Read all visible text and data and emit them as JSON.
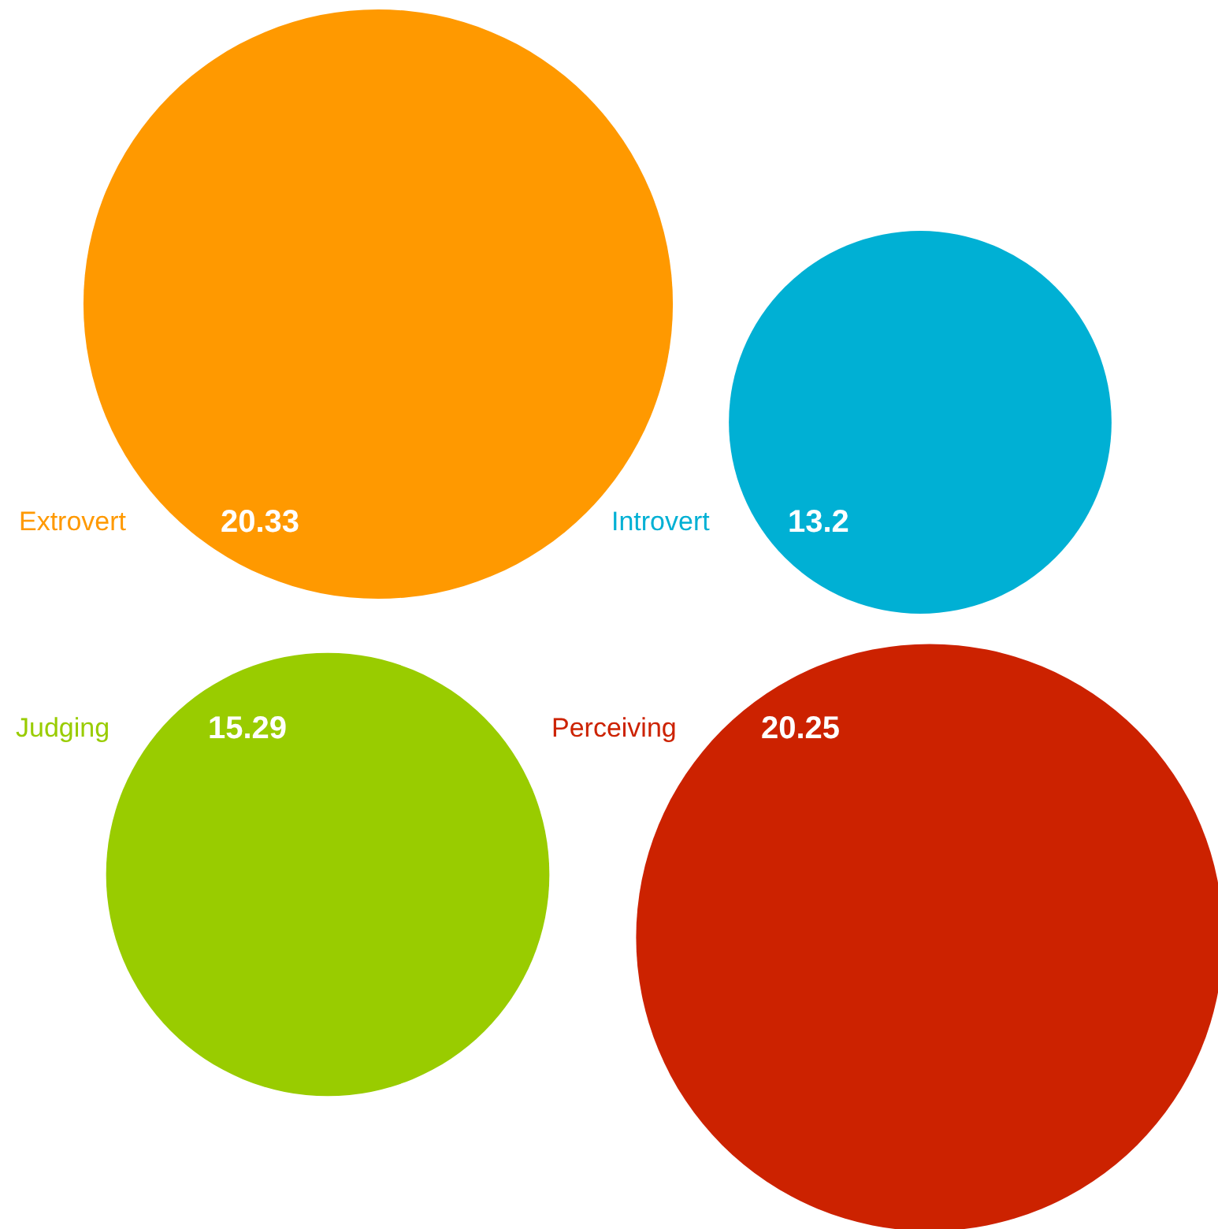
{
  "chart_data": {
    "type": "other",
    "categories": [
      "Extrovert",
      "Introvert",
      "Judging",
      "Perceiving"
    ],
    "values": [
      20.33,
      13.2,
      15.29,
      20.25
    ],
    "colors": [
      "#ff9900",
      "#00b0d4",
      "#99cc00",
      "#cc2200"
    ],
    "data_labels": true
  }
}
